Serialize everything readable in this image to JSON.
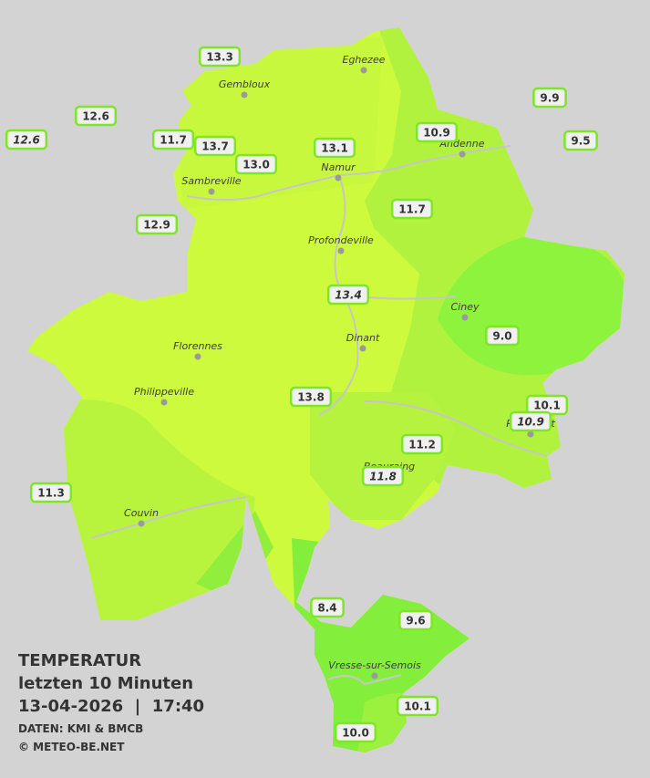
{
  "title": {
    "heading": "TEMPERATUR",
    "period": "letzten 10 Minuten",
    "timestamp": "13-04-2026  |  17:40",
    "source": "DATEN: KMI & BMCB",
    "credit": "© METEO-BE.NET"
  },
  "cities": [
    "Eghezee",
    "Gembloux",
    "Andenne",
    "Namur",
    "Sambreville",
    "Profondeville",
    "Ciney",
    "Dinant",
    "Florennes",
    "Philippeville",
    "Couvin",
    "Vresse-sur-Semois",
    "Rochefort",
    "Beauraing"
  ],
  "stations": [
    {
      "value": 13.3,
      "italic": false
    },
    {
      "value": 12.6,
      "italic": false
    },
    {
      "value": 12.6,
      "italic": true
    },
    {
      "value": 11.7,
      "italic": false
    },
    {
      "value": 13.7,
      "italic": false
    },
    {
      "value": 13,
      "label": "13.0",
      "italic": false
    },
    {
      "value": 13.1,
      "italic": false
    },
    {
      "value": 10.9,
      "italic": false
    },
    {
      "value": 9.9,
      "italic": false
    },
    {
      "value": 9.5,
      "italic": false
    },
    {
      "value": 11.7,
      "italic": false
    },
    {
      "value": 12.9,
      "italic": false
    },
    {
      "value": 13.4,
      "italic": true
    },
    {
      "value": 9,
      "label": "9.0",
      "italic": false
    },
    {
      "value": 13.8,
      "italic": false
    },
    {
      "value": 10.1,
      "italic": false
    },
    {
      "value": 10.9,
      "italic": true
    },
    {
      "value": 11.2,
      "italic": false
    },
    {
      "value": 11.8,
      "italic": true
    },
    {
      "value": 11.3,
      "italic": false
    },
    {
      "value": 8.4,
      "italic": false
    },
    {
      "value": 9.6,
      "italic": false
    },
    {
      "value": 10.1,
      "italic": false
    },
    {
      "value": 10,
      "label": "10.0",
      "italic": false
    }
  ]
}
